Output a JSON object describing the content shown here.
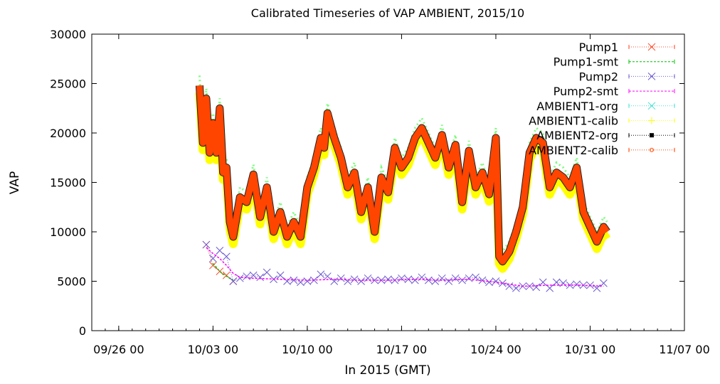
{
  "chart_data": {
    "type": "line",
    "title": "Calibrated Timeseries of VAP AMBIENT, 2015/10",
    "xlabel": "In 2015 (GMT)",
    "ylabel": "VAP",
    "xlim": [
      "2015-09-24",
      "2015-11-07"
    ],
    "ylim": [
      0,
      30000
    ],
    "yticks": [
      0,
      5000,
      10000,
      15000,
      20000,
      25000,
      30000
    ],
    "xticks": [
      {
        "date": "2015-09-26",
        "label": "09/26 00"
      },
      {
        "date": "2015-10-03",
        "label": "10/03 00"
      },
      {
        "date": "2015-10-10",
        "label": "10/10 00"
      },
      {
        "date": "2015-10-17",
        "label": "10/17 00"
      },
      {
        "date": "2015-10-24",
        "label": "10/24 00"
      },
      {
        "date": "2015-10-31",
        "label": "10/31 00"
      },
      {
        "date": "2015-11-07",
        "label": "11/07 00"
      }
    ],
    "grid": false,
    "legend_position": "top-right",
    "series": [
      {
        "name": "Pump1",
        "color": "#ff4d2e",
        "marker": "x",
        "x": [
          "2015-10-02 12:00",
          "2015-10-03 00:00",
          "2015-10-03 12:00",
          "2015-10-04 00:00",
          "2015-10-04 12:00"
        ],
        "values": [
          8700,
          6600,
          6000,
          5600,
          5000
        ]
      },
      {
        "name": "Pump1-smt",
        "color": "#00c000",
        "marker": "none",
        "x": [
          "2015-10-03 00:00",
          "2015-10-03 12:00",
          "2015-10-04 00:00",
          "2015-10-04 12:00"
        ],
        "values": [
          6800,
          6000,
          5500,
          5100
        ]
      },
      {
        "name": "Pump2",
        "color": "#6a5acd",
        "marker": "x",
        "x": [
          "2015-10-02 12:00",
          "2015-10-03 00:00",
          "2015-10-03 12:00",
          "2015-10-04 00:00",
          "2015-10-04 12:00",
          "2015-10-05 00:00",
          "2015-10-05 12:00",
          "2015-10-06 00:00",
          "2015-10-06 12:00",
          "2015-10-07 00:00",
          "2015-10-07 12:00",
          "2015-10-08 00:00",
          "2015-10-08 12:00",
          "2015-10-09 00:00",
          "2015-10-09 12:00",
          "2015-10-10 00:00",
          "2015-10-10 12:00",
          "2015-10-11 00:00",
          "2015-10-11 12:00",
          "2015-10-12 00:00",
          "2015-10-12 12:00",
          "2015-10-13 00:00",
          "2015-10-13 12:00",
          "2015-10-14 00:00",
          "2015-10-14 12:00",
          "2015-10-15 00:00",
          "2015-10-15 12:00",
          "2015-10-16 00:00",
          "2015-10-16 12:00",
          "2015-10-17 00:00",
          "2015-10-17 12:00",
          "2015-10-18 00:00",
          "2015-10-18 12:00",
          "2015-10-19 00:00",
          "2015-10-19 12:00",
          "2015-10-20 00:00",
          "2015-10-20 12:00",
          "2015-10-21 00:00",
          "2015-10-21 12:00",
          "2015-10-22 00:00",
          "2015-10-22 12:00",
          "2015-10-23 00:00",
          "2015-10-23 12:00",
          "2015-10-24 00:00",
          "2015-10-24 12:00",
          "2015-10-25 00:00",
          "2015-10-25 12:00",
          "2015-10-26 00:00",
          "2015-10-26 12:00",
          "2015-10-27 00:00",
          "2015-10-27 12:00",
          "2015-10-28 00:00",
          "2015-10-28 12:00",
          "2015-10-29 00:00",
          "2015-10-29 12:00",
          "2015-10-30 00:00",
          "2015-10-30 12:00",
          "2015-10-31 00:00",
          "2015-10-31 12:00",
          "2015-11-01 00:00"
        ],
        "values": [
          8700,
          7300,
          8100,
          7500,
          5000,
          5300,
          5500,
          5600,
          5400,
          5900,
          5200,
          5600,
          5000,
          5100,
          4900,
          5000,
          5100,
          5700,
          5500,
          5000,
          5300,
          5000,
          5200,
          5000,
          5300,
          5100,
          5100,
          5200,
          5100,
          5300,
          5200,
          5100,
          5400,
          5100,
          5000,
          5300,
          5000,
          5300,
          5100,
          5300,
          5400,
          5100,
          4900,
          5000,
          4800,
          4500,
          4300,
          4500,
          4500,
          4400,
          4900,
          4300,
          4900,
          4800,
          4600,
          4700,
          4600,
          4600,
          4300,
          4800
        ]
      },
      {
        "name": "Pump2-smt",
        "color": "#ff00ff",
        "marker": "none",
        "x": [
          "2015-10-02 12:00",
          "2015-10-03 00:00",
          "2015-10-03 12:00",
          "2015-10-04 00:00",
          "2015-10-04 12:00",
          "2015-10-05 00:00",
          "2015-10-06 00:00",
          "2015-10-08 00:00",
          "2015-10-10 00:00",
          "2015-10-12 00:00",
          "2015-10-14 00:00",
          "2015-10-16 00:00",
          "2015-10-18 00:00",
          "2015-10-20 00:00",
          "2015-10-22 00:00",
          "2015-10-24 00:00",
          "2015-10-26 00:00",
          "2015-10-28 00:00",
          "2015-10-30 00:00",
          "2015-11-01 00:00"
        ],
        "values": [
          8400,
          7800,
          7300,
          6600,
          5800,
          5400,
          5300,
          5200,
          5100,
          5200,
          5100,
          5100,
          5200,
          5100,
          5200,
          4900,
          4500,
          4600,
          4600,
          4500
        ]
      },
      {
        "name": "AMBIENT1-org",
        "color": "#40e0d0",
        "marker": "x"
      },
      {
        "name": "AMBIENT1-calib",
        "color": "#ffff00",
        "marker": "+"
      },
      {
        "name": "AMBIENT2-org",
        "color": "#000000",
        "marker": "square"
      },
      {
        "name": "AMBIENT2-calib",
        "color": "#ff4500",
        "marker": "circle",
        "x": [
          "2015-10-02 00:00",
          "2015-10-02 06:00",
          "2015-10-02 12:00",
          "2015-10-02 18:00",
          "2015-10-03 00:00",
          "2015-10-03 06:00",
          "2015-10-03 12:00",
          "2015-10-03 18:00",
          "2015-10-04 00:00",
          "2015-10-04 06:00",
          "2015-10-04 12:00",
          "2015-10-05 00:00",
          "2015-10-05 12:00",
          "2015-10-06 00:00",
          "2015-10-06 12:00",
          "2015-10-07 00:00",
          "2015-10-07 12:00",
          "2015-10-08 00:00",
          "2015-10-08 12:00",
          "2015-10-09 00:00",
          "2015-10-09 12:00",
          "2015-10-10 00:00",
          "2015-10-10 12:00",
          "2015-10-11 00:00",
          "2015-10-11 06:00",
          "2015-10-11 12:00",
          "2015-10-12 00:00",
          "2015-10-12 12:00",
          "2015-10-13 00:00",
          "2015-10-13 12:00",
          "2015-10-14 00:00",
          "2015-10-14 12:00",
          "2015-10-15 00:00",
          "2015-10-15 12:00",
          "2015-10-16 00:00",
          "2015-10-16 12:00",
          "2015-10-17 00:00",
          "2015-10-17 12:00",
          "2015-10-18 00:00",
          "2015-10-18 12:00",
          "2015-10-19 00:00",
          "2015-10-19 12:00",
          "2015-10-20 00:00",
          "2015-10-20 12:00",
          "2015-10-21 00:00",
          "2015-10-21 12:00",
          "2015-10-22 00:00",
          "2015-10-22 12:00",
          "2015-10-23 00:00",
          "2015-10-23 12:00",
          "2015-10-24 00:00",
          "2015-10-24 06:00",
          "2015-10-24 12:00",
          "2015-10-25 00:00",
          "2015-10-25 12:00",
          "2015-10-26 00:00",
          "2015-10-26 12:00",
          "2015-10-27 00:00",
          "2015-10-27 12:00",
          "2015-10-28 00:00",
          "2015-10-28 12:00",
          "2015-10-29 00:00",
          "2015-10-29 12:00",
          "2015-10-30 00:00",
          "2015-10-30 12:00",
          "2015-10-31 00:00",
          "2015-10-31 12:00",
          "2015-11-01 00:00",
          "2015-11-01 06:00"
        ],
        "values": [
          24800,
          19000,
          23500,
          18000,
          21000,
          18000,
          22500,
          16000,
          16500,
          11000,
          9500,
          13500,
          13000,
          15800,
          11500,
          14500,
          10000,
          12000,
          9500,
          11000,
          9500,
          14500,
          16500,
          19500,
          18500,
          22000,
          19500,
          17500,
          14500,
          16000,
          12000,
          14500,
          10000,
          15500,
          14000,
          18500,
          16500,
          17500,
          19500,
          20500,
          19000,
          17500,
          19800,
          16500,
          18800,
          13000,
          18200,
          14500,
          16000,
          13800,
          19500,
          7500,
          7000,
          8000,
          10000,
          12500,
          18000,
          19500,
          19000,
          14500,
          16000,
          15500,
          14500,
          16500,
          12000,
          10500,
          9000,
          10500,
          10000
        ]
      }
    ]
  }
}
